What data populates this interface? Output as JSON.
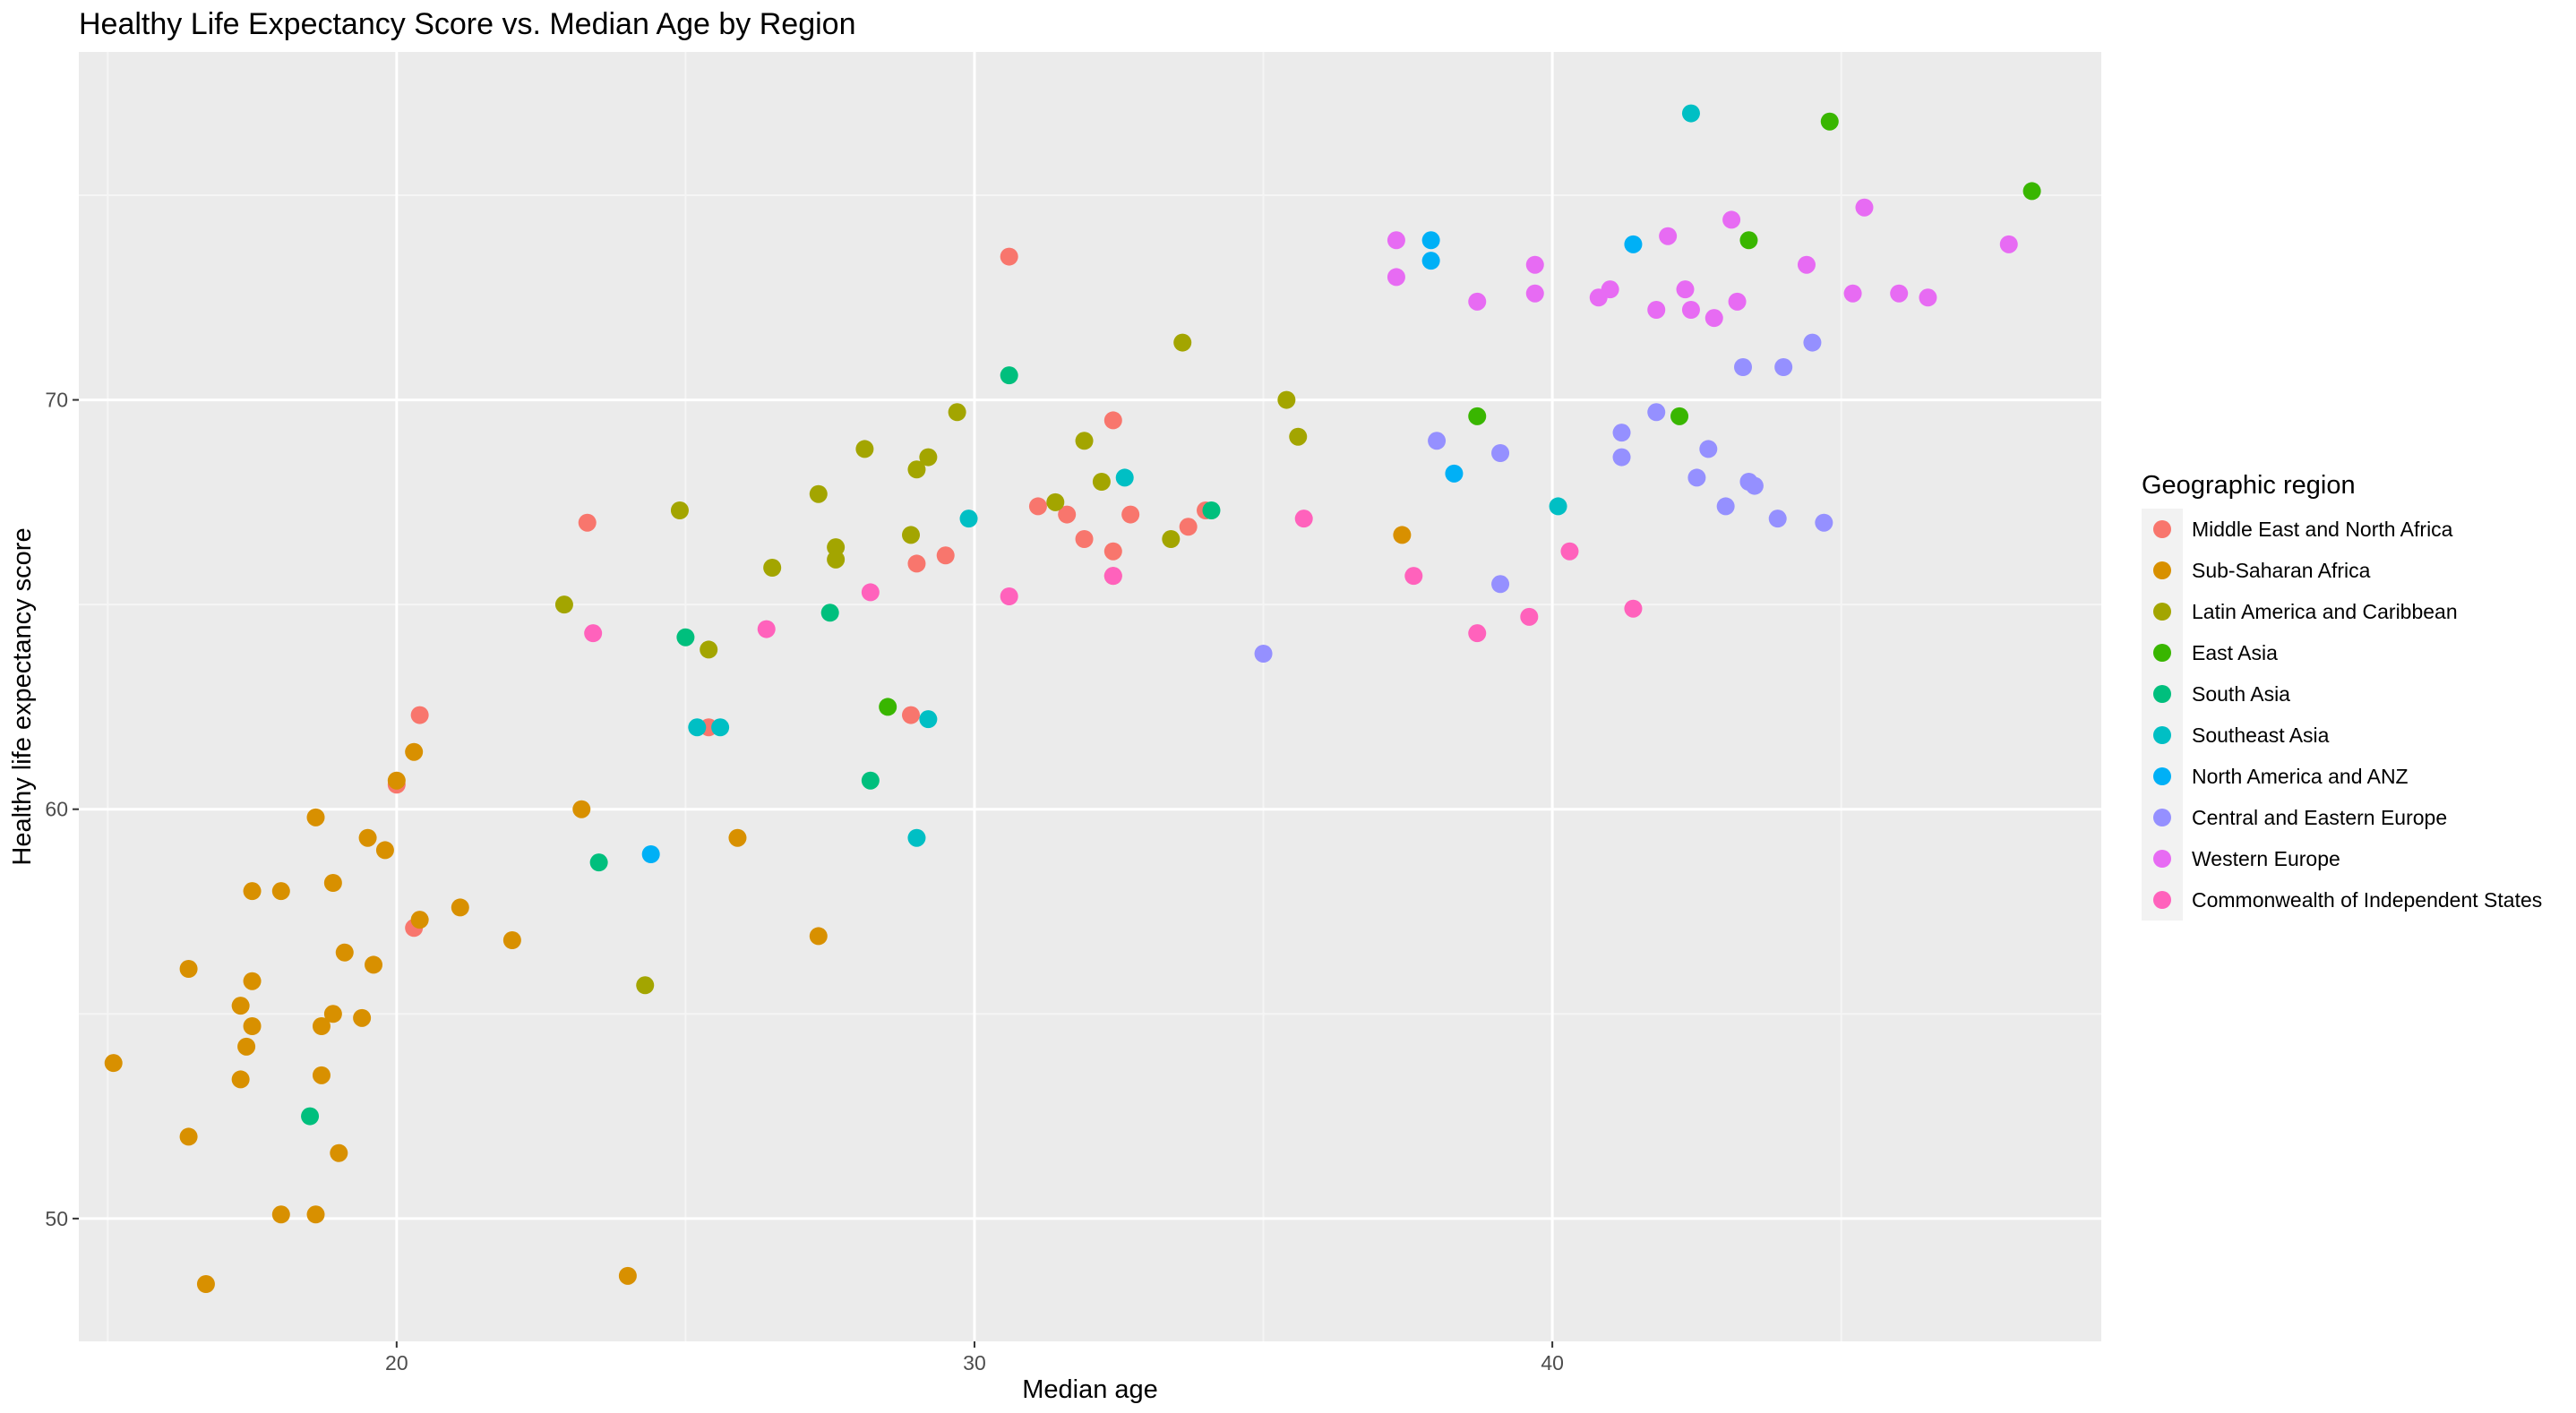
{
  "chart_data": {
    "type": "scatter",
    "title": "Healthy Life Expectancy Score vs. Median Age by Region",
    "xlabel": "Median age",
    "ylabel": "Healthy life expectancy score",
    "xlim": [
      14.5,
      49.5
    ],
    "ylim": [
      47.0,
      78.5
    ],
    "x_ticks": [
      20,
      30,
      40
    ],
    "y_ticks": [
      50,
      60,
      70
    ],
    "grid": true,
    "legend": {
      "title": "Geographic region",
      "position": "right"
    },
    "series": [
      {
        "name": "Middle East and North Africa",
        "color": "#F8766D",
        "points": [
          [
            30.6,
            73.5
          ],
          [
            32.4,
            69.5
          ],
          [
            23.3,
            67.0
          ],
          [
            31.1,
            67.4
          ],
          [
            31.6,
            67.2
          ],
          [
            31.9,
            66.6
          ],
          [
            32.7,
            67.2
          ],
          [
            33.7,
            66.9
          ],
          [
            34.0,
            67.3
          ],
          [
            29.0,
            66.0
          ],
          [
            29.5,
            66.2
          ],
          [
            32.4,
            66.3
          ],
          [
            32.4,
            65.7
          ],
          [
            20.4,
            62.3
          ],
          [
            20.0,
            60.6
          ],
          [
            20.3,
            57.1
          ],
          [
            28.9,
            62.3
          ],
          [
            25.4,
            62.0
          ]
        ]
      },
      {
        "name": "Sub-Saharan Africa",
        "color": "#D89000",
        "points": [
          [
            15.1,
            53.8
          ],
          [
            16.4,
            56.1
          ],
          [
            16.4,
            52.0
          ],
          [
            16.7,
            48.4
          ],
          [
            17.3,
            55.2
          ],
          [
            17.3,
            53.4
          ],
          [
            17.4,
            54.2
          ],
          [
            17.5,
            58.0
          ],
          [
            17.5,
            55.8
          ],
          [
            17.5,
            54.7
          ],
          [
            18.0,
            58.0
          ],
          [
            18.0,
            50.1
          ],
          [
            18.6,
            59.8
          ],
          [
            18.6,
            50.1
          ],
          [
            18.7,
            54.7
          ],
          [
            18.7,
            53.5
          ],
          [
            18.9,
            58.2
          ],
          [
            18.9,
            55.0
          ],
          [
            19.0,
            51.6
          ],
          [
            19.1,
            56.5
          ],
          [
            19.4,
            54.9
          ],
          [
            19.5,
            59.3
          ],
          [
            19.6,
            56.2
          ],
          [
            19.8,
            59.0
          ],
          [
            20.0,
            60.7
          ],
          [
            20.3,
            61.4
          ],
          [
            20.4,
            57.3
          ],
          [
            21.1,
            57.6
          ],
          [
            22.0,
            56.8
          ],
          [
            23.2,
            60.0
          ],
          [
            24.0,
            48.6
          ],
          [
            25.9,
            59.3
          ],
          [
            27.3,
            56.9
          ],
          [
            37.4,
            66.7
          ]
        ]
      },
      {
        "name": "Latin America and Caribbean",
        "color": "#A3A500",
        "points": [
          [
            22.9,
            65.0
          ],
          [
            24.3,
            55.7
          ],
          [
            24.9,
            67.3
          ],
          [
            25.4,
            63.9
          ],
          [
            26.5,
            65.9
          ],
          [
            27.3,
            67.7
          ],
          [
            27.6,
            66.4
          ],
          [
            27.6,
            66.1
          ],
          [
            28.1,
            68.8
          ],
          [
            28.9,
            66.7
          ],
          [
            29.0,
            68.3
          ],
          [
            29.2,
            68.6
          ],
          [
            29.7,
            69.7
          ],
          [
            31.4,
            67.5
          ],
          [
            31.9,
            69.0
          ],
          [
            32.2,
            68.0
          ],
          [
            33.4,
            66.6
          ],
          [
            33.6,
            71.4
          ],
          [
            35.4,
            70.0
          ],
          [
            35.6,
            69.1
          ]
        ]
      },
      {
        "name": "East Asia",
        "color": "#39B600",
        "points": [
          [
            28.5,
            62.5
          ],
          [
            38.7,
            69.6
          ],
          [
            42.2,
            69.6
          ],
          [
            43.4,
            73.9
          ],
          [
            44.8,
            76.8
          ],
          [
            48.3,
            75.1
          ]
        ]
      },
      {
        "name": "South Asia",
        "color": "#00BF7D",
        "points": [
          [
            18.5,
            52.5
          ],
          [
            23.5,
            58.7
          ],
          [
            25.0,
            64.2
          ],
          [
            27.5,
            64.8
          ],
          [
            28.2,
            60.7
          ],
          [
            30.6,
            70.6
          ],
          [
            34.1,
            67.3
          ]
        ]
      },
      {
        "name": "Southeast Asia",
        "color": "#00BFC4",
        "points": [
          [
            25.2,
            62.0
          ],
          [
            25.6,
            62.0
          ],
          [
            29.0,
            59.3
          ],
          [
            29.2,
            62.2
          ],
          [
            29.9,
            67.1
          ],
          [
            32.6,
            68.1
          ],
          [
            40.1,
            67.4
          ],
          [
            42.4,
            77.0
          ]
        ]
      },
      {
        "name": "North America and ANZ",
        "color": "#00B0F6",
        "points": [
          [
            24.4,
            58.9
          ],
          [
            37.9,
            73.9
          ],
          [
            37.9,
            73.4
          ],
          [
            38.3,
            68.2
          ],
          [
            41.4,
            73.8
          ]
        ]
      },
      {
        "name": "Central and Eastern Europe",
        "color": "#9590FF",
        "points": [
          [
            35.0,
            63.8
          ],
          [
            38.0,
            69.0
          ],
          [
            39.1,
            68.7
          ],
          [
            39.1,
            65.5
          ],
          [
            41.2,
            69.2
          ],
          [
            41.2,
            68.6
          ],
          [
            41.8,
            69.7
          ],
          [
            42.5,
            68.1
          ],
          [
            42.7,
            68.8
          ],
          [
            43.0,
            67.4
          ],
          [
            43.3,
            70.8
          ],
          [
            43.4,
            68.0
          ],
          [
            43.5,
            67.9
          ],
          [
            43.9,
            67.1
          ],
          [
            44.0,
            70.8
          ],
          [
            44.5,
            71.4
          ],
          [
            44.7,
            67.0
          ]
        ]
      },
      {
        "name": "Western Europe",
        "color": "#E76BF3",
        "points": [
          [
            37.3,
            73.9
          ],
          [
            37.3,
            73.0
          ],
          [
            38.7,
            72.4
          ],
          [
            39.7,
            73.3
          ],
          [
            39.7,
            72.6
          ],
          [
            40.8,
            72.5
          ],
          [
            41.0,
            72.7
          ],
          [
            41.8,
            72.2
          ],
          [
            42.0,
            74.0
          ],
          [
            42.3,
            72.7
          ],
          [
            42.4,
            72.2
          ],
          [
            42.8,
            72.0
          ],
          [
            43.1,
            74.4
          ],
          [
            43.2,
            72.4
          ],
          [
            44.4,
            73.3
          ],
          [
            45.2,
            72.6
          ],
          [
            45.4,
            74.7
          ],
          [
            46.0,
            72.6
          ],
          [
            46.5,
            72.5
          ],
          [
            47.9,
            73.8
          ]
        ]
      },
      {
        "name": "Commonwealth of Independent States",
        "color": "#FF62BC",
        "points": [
          [
            23.4,
            64.3
          ],
          [
            26.4,
            64.4
          ],
          [
            28.2,
            65.3
          ],
          [
            30.6,
            65.2
          ],
          [
            32.4,
            65.7
          ],
          [
            35.7,
            67.1
          ],
          [
            37.6,
            65.7
          ],
          [
            38.7,
            64.3
          ],
          [
            39.6,
            64.7
          ],
          [
            40.3,
            66.3
          ],
          [
            41.4,
            64.9
          ]
        ]
      }
    ]
  }
}
